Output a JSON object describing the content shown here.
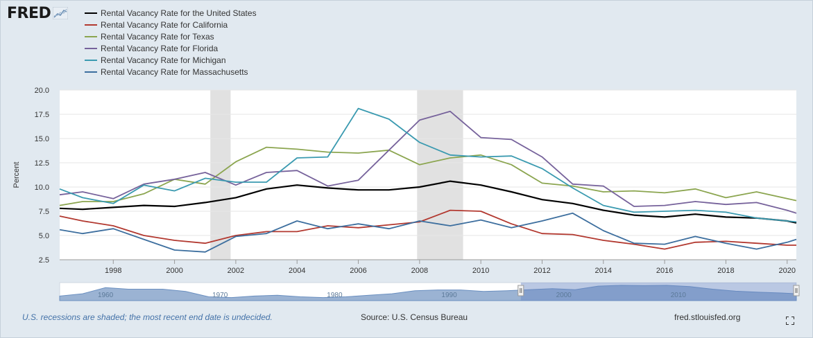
{
  "logo": {
    "text": "FRED"
  },
  "chart_data": {
    "type": "line",
    "title": "",
    "xlabel": "",
    "ylabel": "Percent",
    "ylim": [
      2.5,
      20.0
    ],
    "xlim": [
      1996.25,
      2020.3
    ],
    "yticks": [
      "2.5",
      "5.0",
      "7.5",
      "10.0",
      "12.5",
      "15.0",
      "17.5",
      "20.0"
    ],
    "xticks": [
      "1998",
      "2000",
      "2002",
      "2004",
      "2006",
      "2008",
      "2010",
      "2012",
      "2014",
      "2016",
      "2018",
      "2020"
    ],
    "grid": "horizontal",
    "legend_position": "top-left",
    "recessions": [
      [
        2001.17,
        2001.83
      ],
      [
        2007.92,
        2009.42
      ]
    ],
    "x": [
      1996.25,
      1997,
      1998,
      1999,
      2000,
      2001,
      2002,
      2003,
      2004,
      2005,
      2006,
      2007,
      2008,
      2009,
      2010,
      2011,
      2012,
      2013,
      2014,
      2015,
      2016,
      2017,
      2018,
      2019,
      2020,
      2020.3
    ],
    "series": [
      {
        "name": "Rental Vacancy Rate for the United States",
        "color": "#000000",
        "values": [
          7.8,
          7.7,
          7.9,
          8.1,
          8.0,
          8.4,
          8.9,
          9.8,
          10.2,
          9.9,
          9.7,
          9.7,
          10.0,
          10.6,
          10.2,
          9.5,
          8.7,
          8.3,
          7.6,
          7.1,
          6.9,
          7.2,
          6.9,
          6.8,
          6.5,
          6.3
        ]
      },
      {
        "name": "Rental Vacancy Rate for California",
        "color": "#b2382f",
        "values": [
          7.0,
          6.5,
          6.0,
          5.0,
          4.5,
          4.2,
          5.0,
          5.4,
          5.4,
          6.0,
          5.8,
          6.1,
          6.4,
          7.6,
          7.5,
          6.2,
          5.2,
          5.1,
          4.5,
          4.1,
          3.6,
          4.3,
          4.4,
          4.2,
          4.0,
          4.0
        ]
      },
      {
        "name": "Rental Vacancy Rate for Texas",
        "color": "#8ba54f",
        "values": [
          8.1,
          8.5,
          8.5,
          9.3,
          10.8,
          10.3,
          12.6,
          14.1,
          13.9,
          13.6,
          13.5,
          13.8,
          12.3,
          13.0,
          13.3,
          12.3,
          10.4,
          10.1,
          9.5,
          9.6,
          9.4,
          9.8,
          8.9,
          9.5,
          8.8,
          8.6
        ]
      },
      {
        "name": "Rental Vacancy Rate for Florida",
        "color": "#76629b",
        "values": [
          9.2,
          9.5,
          8.8,
          10.3,
          10.8,
          11.5,
          10.2,
          11.5,
          11.7,
          10.1,
          10.7,
          13.8,
          16.9,
          17.8,
          15.1,
          14.9,
          13.1,
          10.3,
          10.1,
          8.0,
          8.1,
          8.5,
          8.2,
          8.4,
          7.6,
          7.3
        ]
      },
      {
        "name": "Rental Vacancy Rate for Michigan",
        "color": "#3a9ab0",
        "values": [
          9.8,
          8.9,
          8.3,
          10.2,
          9.6,
          10.9,
          10.5,
          10.5,
          13.0,
          13.1,
          18.1,
          17.0,
          14.6,
          13.3,
          13.1,
          13.2,
          11.9,
          9.9,
          8.1,
          7.4,
          7.5,
          7.6,
          7.4,
          6.8,
          6.5,
          6.4
        ]
      },
      {
        "name": "Rental Vacancy Rate for Massachusetts",
        "color": "#3c6e9e",
        "values": [
          5.6,
          5.2,
          5.7,
          4.6,
          3.5,
          3.3,
          4.9,
          5.2,
          6.5,
          5.7,
          6.2,
          5.7,
          6.5,
          6.0,
          6.6,
          5.8,
          6.5,
          7.3,
          5.5,
          4.2,
          4.1,
          4.9,
          4.2,
          3.6,
          4.3,
          4.6
        ]
      }
    ]
  },
  "navigator": {
    "labels": [
      "1960",
      "1970",
      "1980",
      "1990",
      "2000",
      "2010"
    ],
    "range_start": 1996.25,
    "range_end": 2020.3,
    "full_start": 1956,
    "full_end": 2020.3,
    "profile": [
      [
        1956,
        0.3
      ],
      [
        1958,
        0.45
      ],
      [
        1960,
        0.85
      ],
      [
        1962,
        0.75
      ],
      [
        1965,
        0.75
      ],
      [
        1967,
        0.6
      ],
      [
        1969,
        0.25
      ],
      [
        1971,
        0.2
      ],
      [
        1973,
        0.3
      ],
      [
        1975,
        0.35
      ],
      [
        1977,
        0.25
      ],
      [
        1979,
        0.2
      ],
      [
        1981,
        0.25
      ],
      [
        1983,
        0.35
      ],
      [
        1985,
        0.45
      ],
      [
        1987,
        0.65
      ],
      [
        1989,
        0.7
      ],
      [
        1991,
        0.7
      ],
      [
        1993,
        0.6
      ],
      [
        1995,
        0.65
      ],
      [
        1997,
        0.72
      ],
      [
        1999,
        0.78
      ],
      [
        2001,
        0.72
      ],
      [
        2003,
        0.95
      ],
      [
        2005,
        1.0
      ],
      [
        2007,
        0.98
      ],
      [
        2009,
        1.0
      ],
      [
        2011,
        0.92
      ],
      [
        2013,
        0.75
      ],
      [
        2015,
        0.62
      ],
      [
        2017,
        0.55
      ],
      [
        2019,
        0.5
      ],
      [
        2020.3,
        0.45
      ]
    ]
  },
  "footer": {
    "note": "U.S. recessions are shaded; the most recent end date is undecided.",
    "source": "Source: U.S. Census Bureau",
    "url": "fred.stlouisfed.org"
  },
  "icons": {
    "logo_graph": "line-graph-icon",
    "fullscreen": "fullscreen-icon"
  }
}
